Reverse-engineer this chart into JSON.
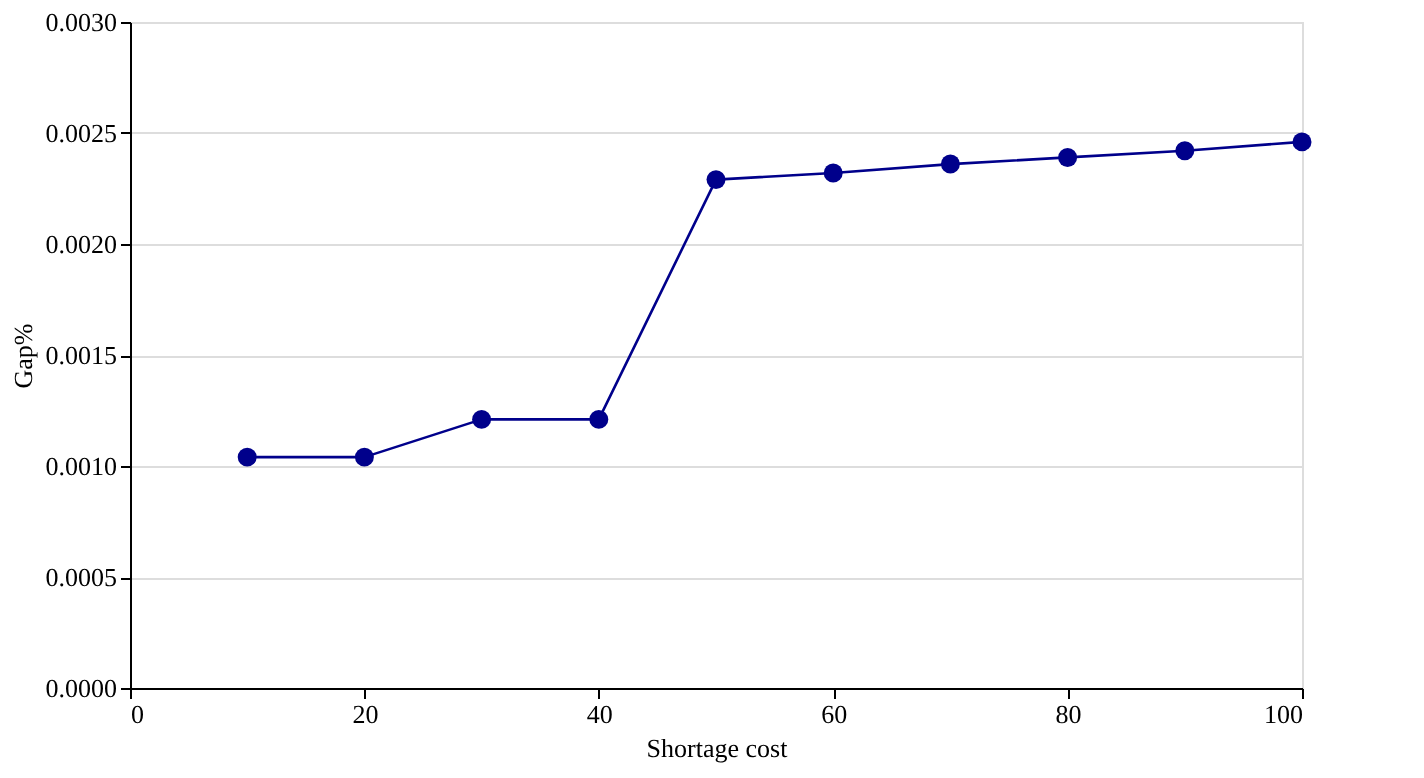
{
  "chart_data": {
    "type": "line",
    "xlabel": "Shortage cost",
    "ylabel": "Gap%",
    "x": [
      10,
      20,
      30,
      40,
      50,
      60,
      70,
      80,
      90,
      100
    ],
    "series": [
      {
        "color": "#00008b",
        "values": [
          0.00104,
          0.00104,
          0.00121,
          0.00121,
          0.00229,
          0.00232,
          0.00236,
          0.00239,
          0.00242,
          0.00246
        ]
      }
    ],
    "xlim": [
      0,
      100
    ],
    "xticks": [
      0,
      20,
      40,
      60,
      80,
      100
    ],
    "ylim": [
      0,
      0.003
    ],
    "yticks": [
      {
        "value": 0,
        "label": "0.0000"
      },
      {
        "value": 0.0005,
        "label": "0.0005"
      },
      {
        "value": 0.001,
        "label": "0.0010"
      },
      {
        "value": 0.0015,
        "label": "0.0015"
      },
      {
        "value": 0.002,
        "label": "0.0020"
      },
      {
        "value": 0.0025,
        "label": "0.0025"
      },
      {
        "value": 0.003,
        "label": "0.0030"
      }
    ],
    "grid": "y",
    "marker": "circle",
    "line_style": "solid"
  }
}
